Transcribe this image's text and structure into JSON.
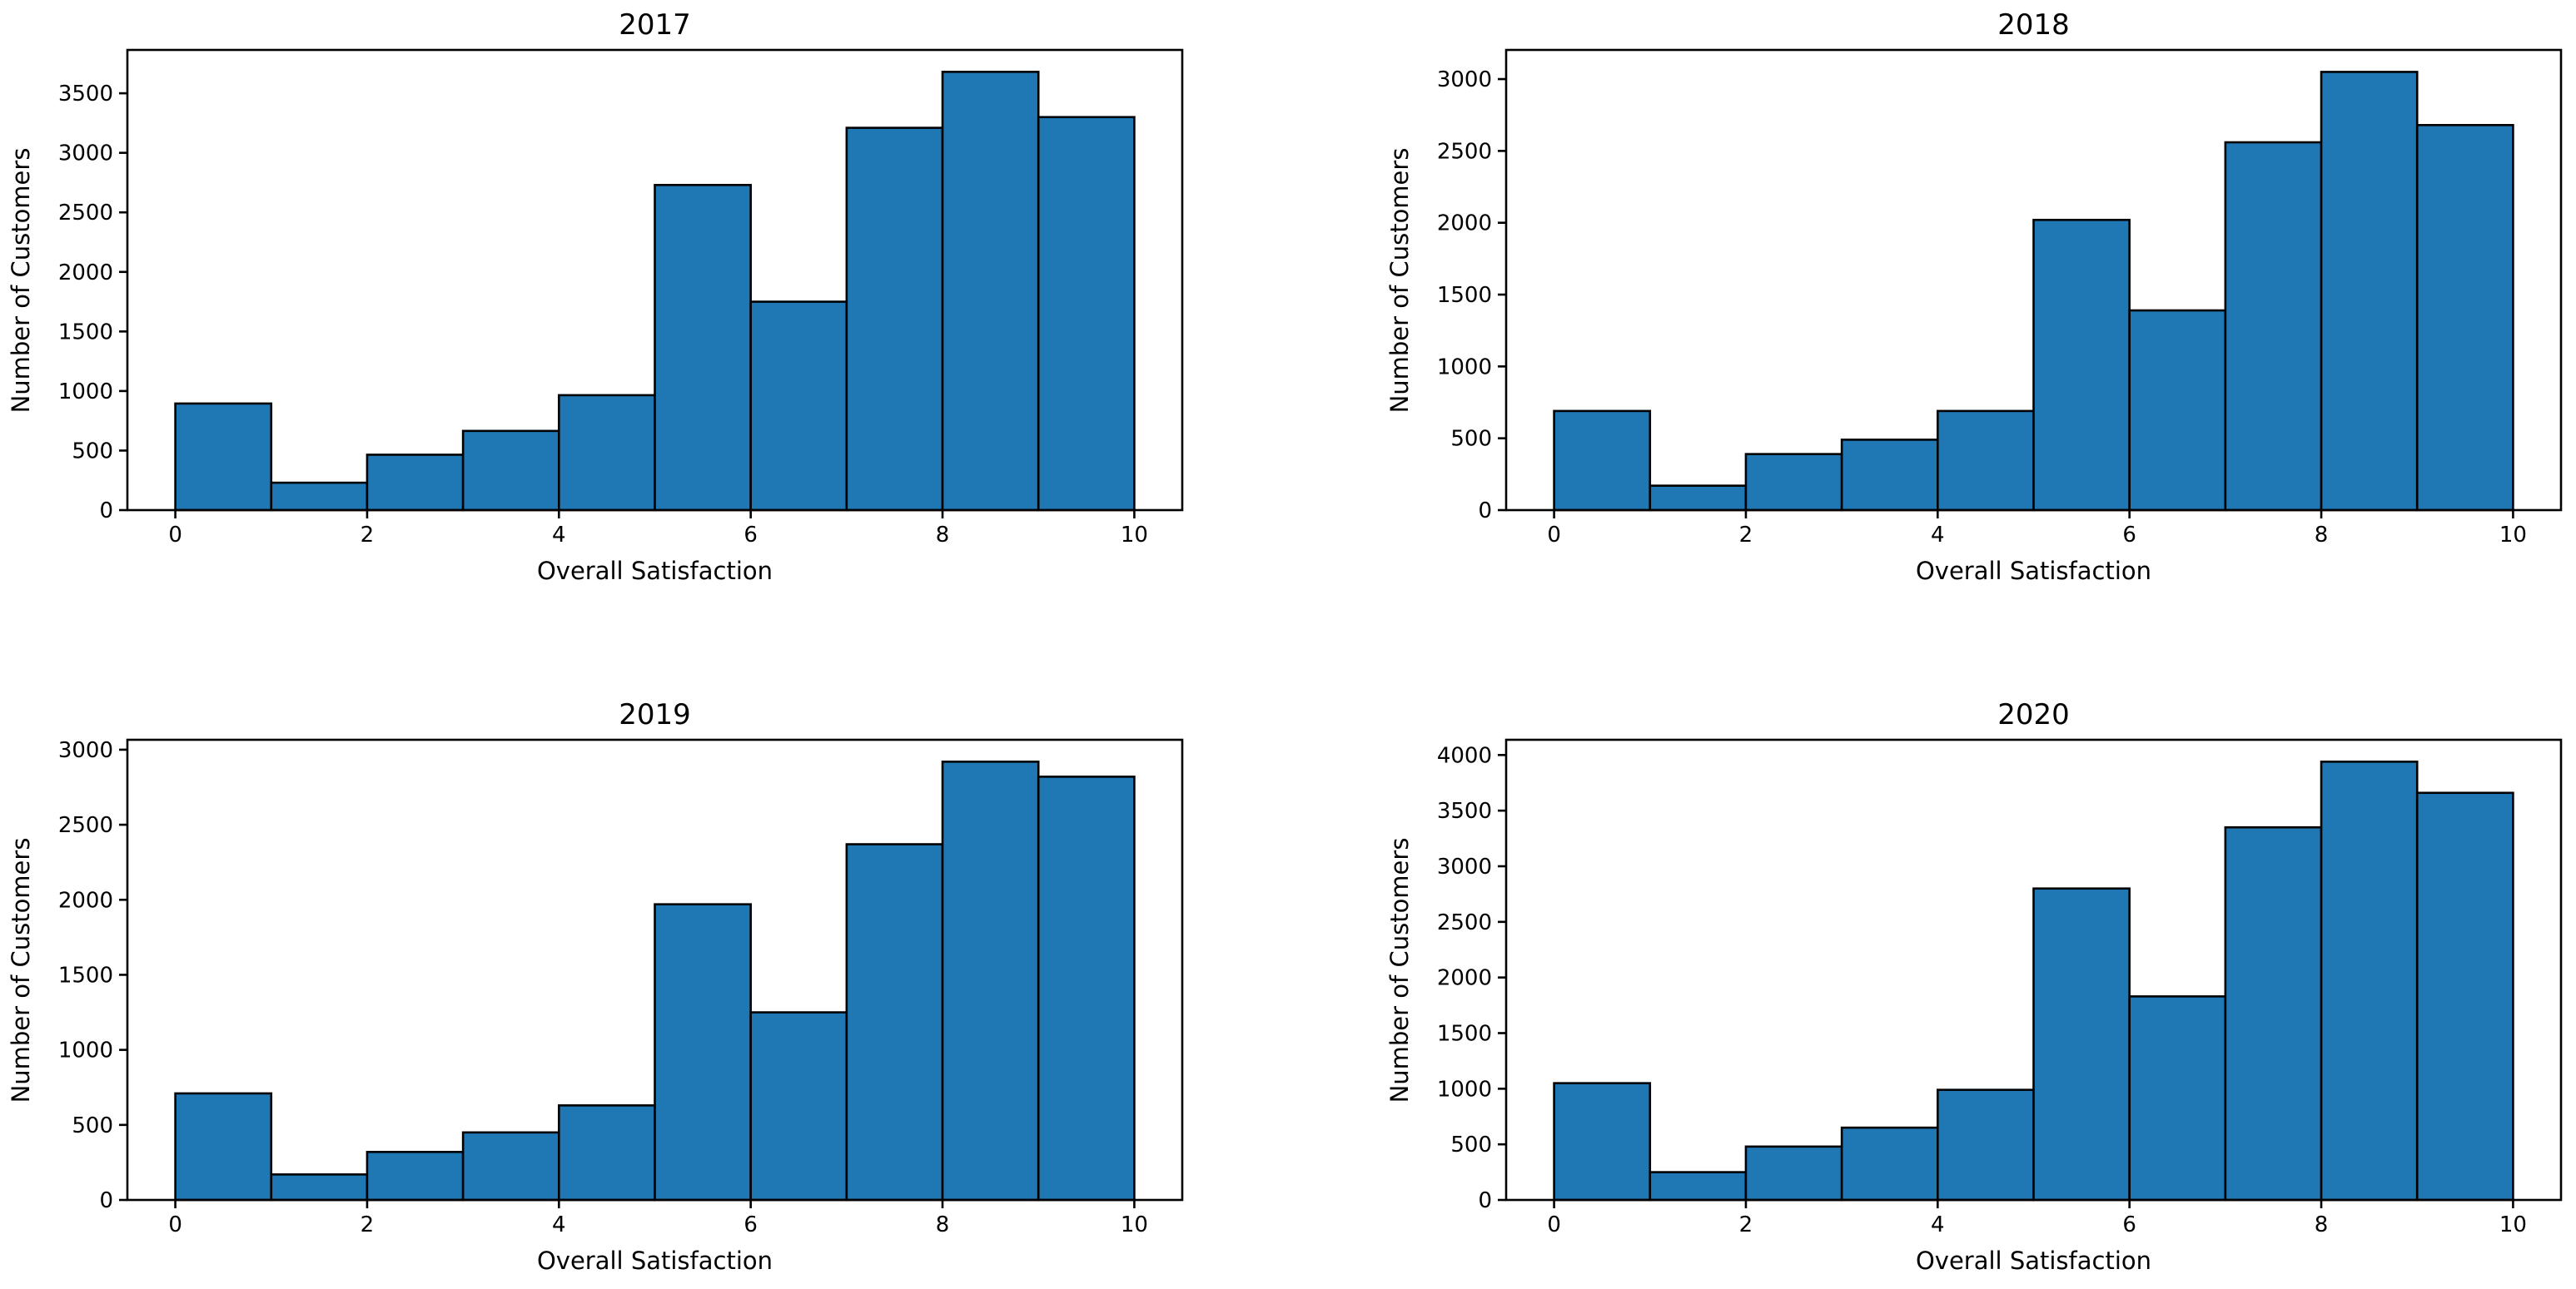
{
  "figure": {
    "background": "#ffffff",
    "bar_fill": "#1f77b4",
    "bar_edge": "#000000",
    "axis_color": "#000000",
    "text_color": "#000000"
  },
  "chart_data": [
    {
      "type": "bar",
      "subtype": "histogram",
      "title": "2017",
      "xlabel": "Overall Satisfaction",
      "ylabel": "Number of Customers",
      "bin_edges": [
        0,
        1,
        2,
        3,
        4,
        5,
        6,
        7,
        8,
        9,
        10
      ],
      "values": [
        895,
        230,
        465,
        665,
        965,
        2730,
        1750,
        3210,
        3680,
        3300
      ],
      "xticks": [
        0,
        2,
        4,
        6,
        8,
        10
      ],
      "yticks": [
        0,
        500,
        1000,
        1500,
        2000,
        2500,
        3000,
        3500
      ],
      "xlim": [
        -0.5,
        10.5
      ],
      "ylim": [
        0,
        3864
      ],
      "grid": false,
      "legend": null
    },
    {
      "type": "bar",
      "subtype": "histogram",
      "title": "2018",
      "xlabel": "Overall Satisfaction",
      "ylabel": "Number of Customers",
      "bin_edges": [
        0,
        1,
        2,
        3,
        4,
        5,
        6,
        7,
        8,
        9,
        10
      ],
      "values": [
        690,
        170,
        390,
        490,
        690,
        2020,
        1390,
        2560,
        3050,
        2680
      ],
      "xticks": [
        0,
        2,
        4,
        6,
        8,
        10
      ],
      "yticks": [
        0,
        500,
        1000,
        1500,
        2000,
        2500,
        3000
      ],
      "xlim": [
        -0.5,
        10.5
      ],
      "ylim": [
        0,
        3203
      ],
      "grid": false,
      "legend": null
    },
    {
      "type": "bar",
      "subtype": "histogram",
      "title": "2019",
      "xlabel": "Overall Satisfaction",
      "ylabel": "Number of Customers",
      "bin_edges": [
        0,
        1,
        2,
        3,
        4,
        5,
        6,
        7,
        8,
        9,
        10
      ],
      "values": [
        710,
        170,
        320,
        450,
        630,
        1970,
        1250,
        2370,
        2920,
        2820
      ],
      "xticks": [
        0,
        2,
        4,
        6,
        8,
        10
      ],
      "yticks": [
        0,
        500,
        1000,
        1500,
        2000,
        2500,
        3000
      ],
      "xlim": [
        -0.5,
        10.5
      ],
      "ylim": [
        0,
        3066
      ],
      "grid": false,
      "legend": null
    },
    {
      "type": "bar",
      "subtype": "histogram",
      "title": "2020",
      "xlabel": "Overall Satisfaction",
      "ylabel": "Number of Customers",
      "bin_edges": [
        0,
        1,
        2,
        3,
        4,
        5,
        6,
        7,
        8,
        9,
        10
      ],
      "values": [
        1050,
        250,
        480,
        650,
        990,
        2800,
        1830,
        3350,
        3940,
        3660
      ],
      "xticks": [
        0,
        2,
        4,
        6,
        8,
        10
      ],
      "yticks": [
        0,
        500,
        1000,
        1500,
        2000,
        2500,
        3000,
        3500,
        4000
      ],
      "xlim": [
        -0.5,
        10.5
      ],
      "ylim": [
        0,
        4137
      ],
      "grid": false,
      "legend": null
    }
  ]
}
